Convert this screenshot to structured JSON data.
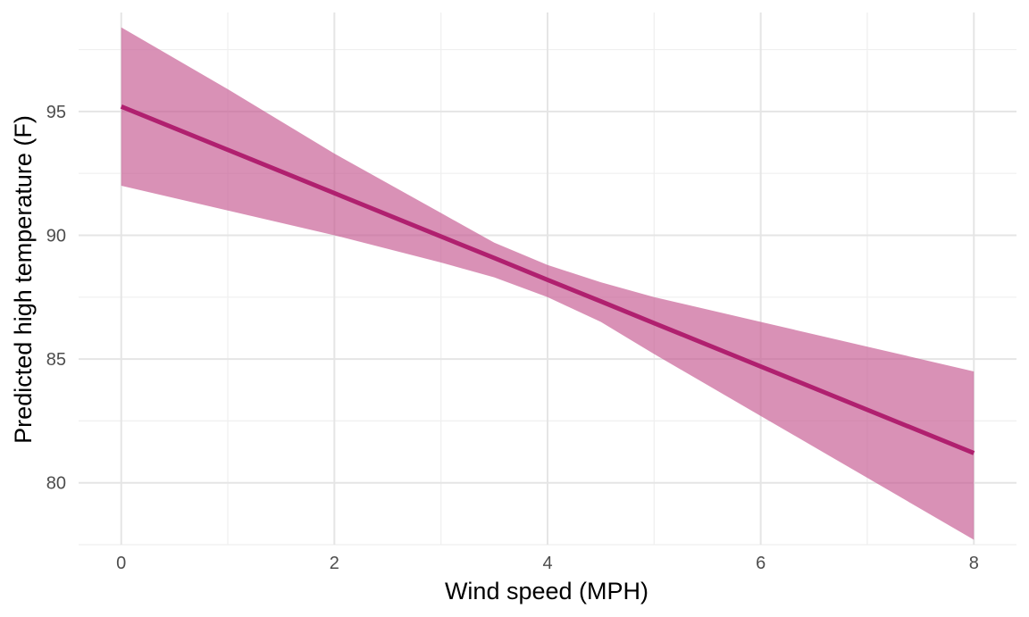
{
  "chart_data": {
    "type": "line",
    "title": "",
    "xlabel": "Wind speed (MPH)",
    "ylabel": "Predicted high temperature (F)",
    "xlim": [
      -0.4,
      8.4
    ],
    "ylim": [
      77.5,
      99.0
    ],
    "x_ticks": [
      "0",
      "2",
      "4",
      "6",
      "8"
    ],
    "y_ticks": [
      "80",
      "85",
      "90",
      "95"
    ],
    "grid": true,
    "legend": "none",
    "colors": {
      "line": "#b0206f",
      "ribbon": "#c4568f"
    },
    "series": [
      {
        "x": [
          0,
          1,
          2,
          3,
          3.5,
          4,
          4.5,
          5,
          6,
          7,
          8
        ],
        "fit": [
          95.2,
          93.45,
          91.7,
          89.95,
          89.08,
          88.2,
          87.33,
          86.45,
          84.7,
          82.95,
          81.2
        ],
        "lower": [
          92.0,
          91.0,
          90.0,
          88.9,
          88.3,
          87.5,
          86.5,
          85.2,
          82.7,
          80.2,
          77.7
        ],
        "upper": [
          98.4,
          95.9,
          93.3,
          90.9,
          89.7,
          88.8,
          88.1,
          87.5,
          86.5,
          85.5,
          84.5
        ]
      }
    ]
  }
}
